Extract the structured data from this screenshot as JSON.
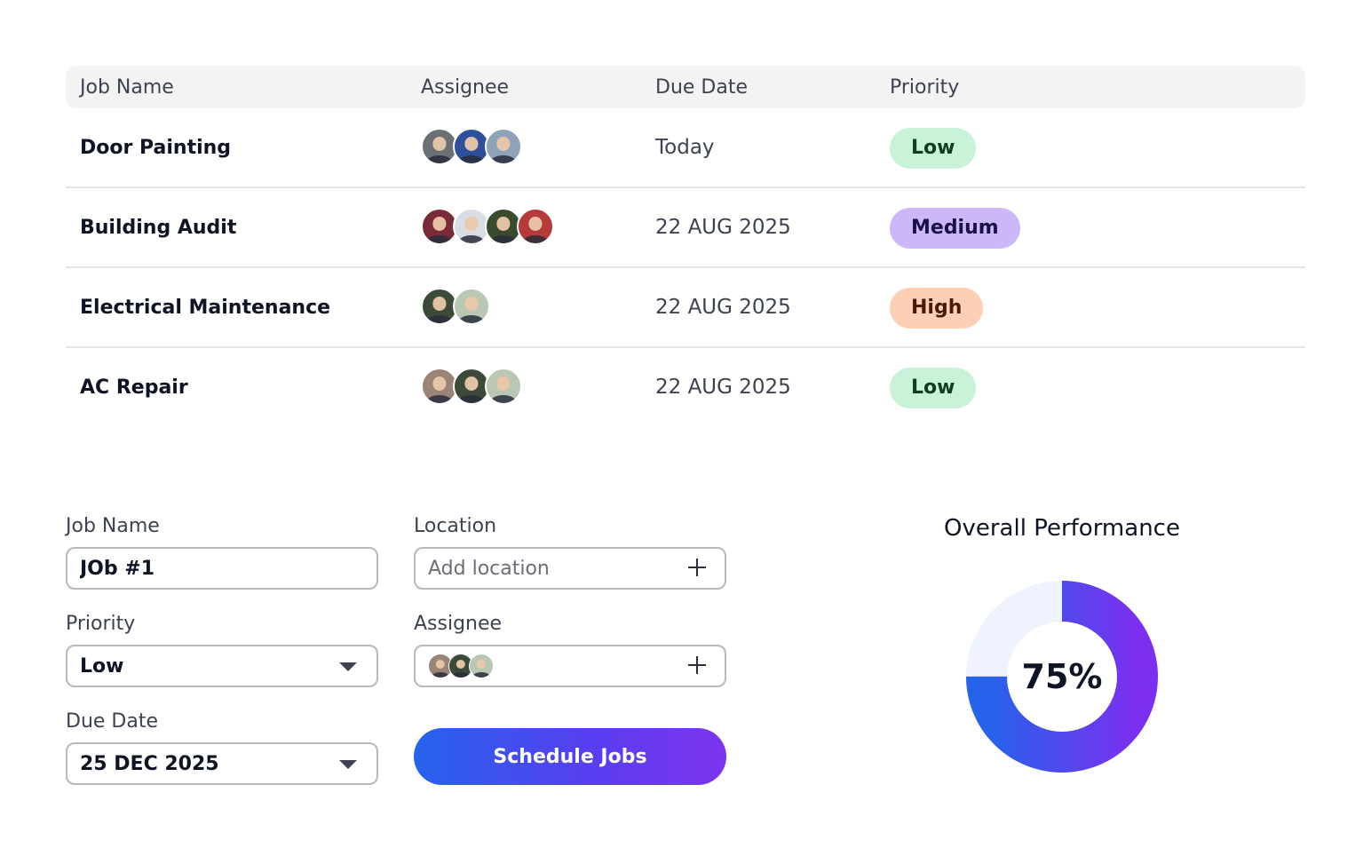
{
  "table": {
    "headers": {
      "job_name": "Job Name",
      "assignee": "Assignee",
      "due_date": "Due Date",
      "priority": "Priority"
    },
    "rows": [
      {
        "job": "Door Painting",
        "due": "Today",
        "priority": "Low",
        "priority_color": "#c9f3d9",
        "priority_text_color": "#0f3d22",
        "avatar_colors": [
          "#6b6f76",
          "#2f4f9a",
          "#8fa3b8"
        ]
      },
      {
        "job": "Building Audit",
        "due": "22 AUG 2025",
        "priority": "Medium",
        "priority_color": "#cdb7fb",
        "priority_text_color": "#1c1147",
        "avatar_colors": [
          "#7a2b3a",
          "#d9dde4",
          "#3a4a2c",
          "#b63a3a"
        ]
      },
      {
        "job": "Electrical Maintenance",
        "due": "22 AUG 2025",
        "priority": "High",
        "priority_color": "#fdd0b6",
        "priority_text_color": "#4a1a08",
        "avatar_colors": [
          "#3c4a3a",
          "#b9c7b5"
        ]
      },
      {
        "job": "AC Repair",
        "due": "22 AUG 2025",
        "priority": "Low",
        "priority_color": "#c9f3d9",
        "priority_text_color": "#0f3d22",
        "avatar_colors": [
          "#9a8478",
          "#3c4a3a",
          "#b9c7b5"
        ]
      }
    ]
  },
  "form": {
    "job_name": {
      "label": "Job Name",
      "value": "JOb #1"
    },
    "location": {
      "label": "Location",
      "placeholder": "Add location"
    },
    "priority": {
      "label": "Priority",
      "value": "Low"
    },
    "assignee": {
      "label": "Assignee",
      "avatar_colors": [
        "#9a8478",
        "#3c4a3a",
        "#b9c7b5"
      ]
    },
    "due_date": {
      "label": "Due Date",
      "value": "25 DEC 2025"
    },
    "submit_label": "Schedule Jobs"
  },
  "performance": {
    "title": "Overall Performance",
    "value_label": "75%",
    "fraction": 0.75,
    "track_color": "#eef3fe",
    "gradient_start": "#2563eb",
    "gradient_end": "#7c2ff0"
  }
}
